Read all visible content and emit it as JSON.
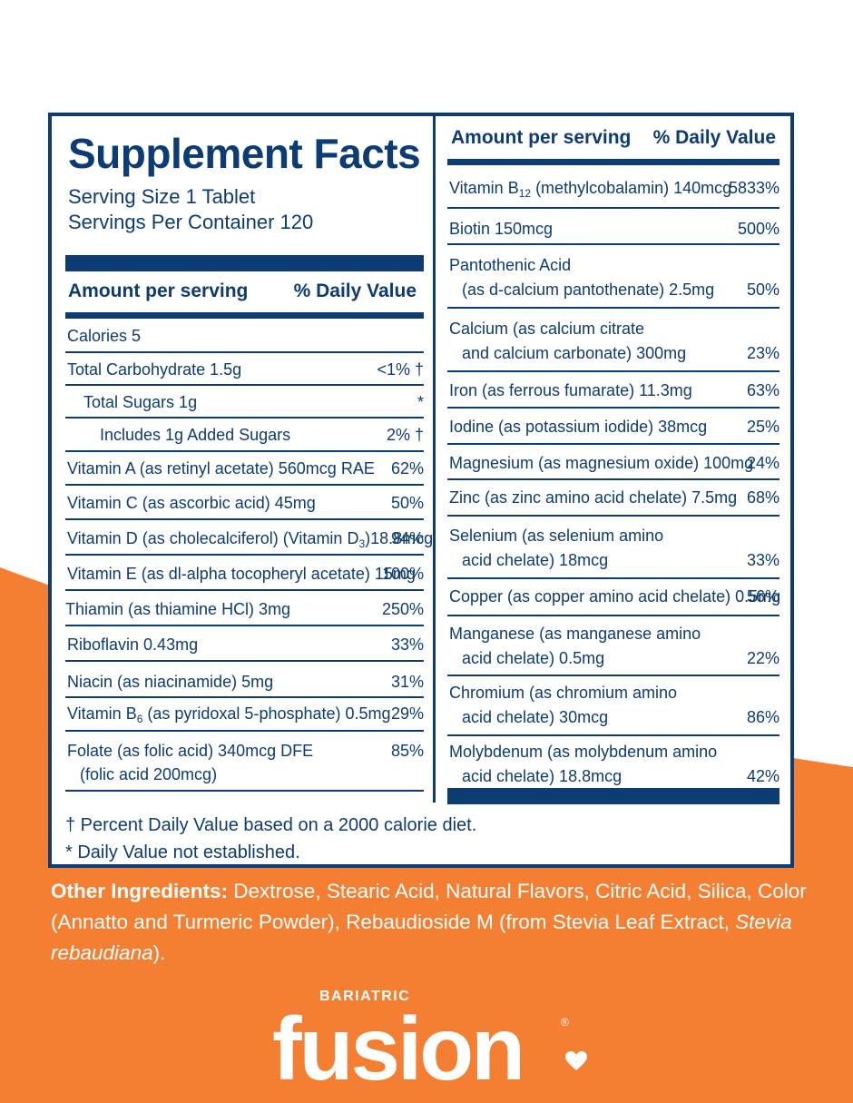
{
  "colors": {
    "navy": "#0d3b73",
    "orange": "#f47f32",
    "white": "#ffffff"
  },
  "label": {
    "title": "Supplement Facts",
    "serving_size": "Serving Size 1 Tablet",
    "servings_per_container": "Servings Per Container 120",
    "amount_header": "Amount per serving",
    "dv_header": "% Daily Value",
    "left_rows": [
      {
        "label": "Calories 5",
        "value": ""
      },
      {
        "label": "Total Carbohydrate 1.5g",
        "value": "<1% †"
      },
      {
        "label": "Total Sugars 1g",
        "value": "*"
      },
      {
        "label": "Includes 1g Added Sugars",
        "value": "2% †"
      },
      {
        "label": "Vitamin A (as retinyl acetate) 560mcg RAE",
        "value": "62%"
      },
      {
        "label": "Vitamin C (as ascorbic acid) 45mg",
        "value": "50%"
      },
      {
        "label_pre": "Vitamin D (as cholecalciferol) (Vitamin D",
        "label_sub": "3",
        "label_post": ")18.8mcg",
        "value": "94%"
      },
      {
        "label": "Vitamin E (as dl-alpha tocopheryl acetate) 15mg",
        "value": "100%"
      },
      {
        "label": "Thiamin (as thiamine HCl) 3mg",
        "value": "250%"
      },
      {
        "label": "Riboflavin 0.43mg",
        "value": "33%"
      },
      {
        "label": "Niacin (as niacinamide) 5mg",
        "value": "31%"
      },
      {
        "label_pre": "Vitamin B",
        "label_sub": "6",
        "label_post": " (as pyridoxal 5-phosphate) 0.5mg",
        "value": "29%"
      },
      {
        "label": "Folate (as folic acid) 340mcg DFE",
        "label2": "(folic acid 200mcg)",
        "value": "85%"
      }
    ],
    "right_rows": [
      {
        "label_pre": "Vitamin B",
        "label_sub": "12",
        "label_post": " (methylcobalamin) 140mcg",
        "value": "5833%"
      },
      {
        "label": "Biotin 150mcg",
        "value": "500%"
      },
      {
        "label": "Pantothenic Acid",
        "label2": "(as d-calcium pantothenate) 2.5mg",
        "value": "50%"
      },
      {
        "label": "Calcium (as calcium citrate",
        "label2": "and calcium carbonate) 300mg",
        "value": "23%"
      },
      {
        "label": "Iron (as ferrous fumarate) 11.3mg",
        "value": "63%"
      },
      {
        "label": "Iodine (as potassium iodide) 38mcg",
        "value": "25%"
      },
      {
        "label": "Magnesium (as magnesium oxide) 100mg",
        "value": "24%"
      },
      {
        "label": "Zinc (as zinc amino acid chelate) 7.5mg",
        "value": "68%"
      },
      {
        "label": "Selenium (as selenium amino",
        "label2": "acid chelate) 18mcg",
        "value": "33%"
      },
      {
        "label": "Copper (as copper amino acid chelate) 0.5mg",
        "value": "56%"
      },
      {
        "label": "Manganese (as manganese amino",
        "label2": "acid chelate) 0.5mg",
        "value": "22%"
      },
      {
        "label": "Chromium (as chromium amino",
        "label2": "acid chelate) 30mcg",
        "value": "86%"
      },
      {
        "label": "Molybdenum (as molybdenum amino",
        "label2": "acid chelate) 18.8mcg",
        "value": "42%"
      }
    ],
    "footnote_dagger": "† Percent Daily Value based on a 2000 calorie diet.",
    "footnote_star": "* Daily Value not established."
  },
  "ingredients": {
    "heading": "Other Ingredients:",
    "text": " Dextrose, Stearic Acid, Natural Flavors, Citric Acid, Silica, Color (Annatto and Turmeric Powder), Rebaudioside M (from Stevia Leaf Extract, ",
    "italic": "Stevia rebaudiana",
    "end": ")."
  },
  "brand": {
    "small": "BARIATRIC",
    "name": "fusion",
    "reg": "®"
  }
}
